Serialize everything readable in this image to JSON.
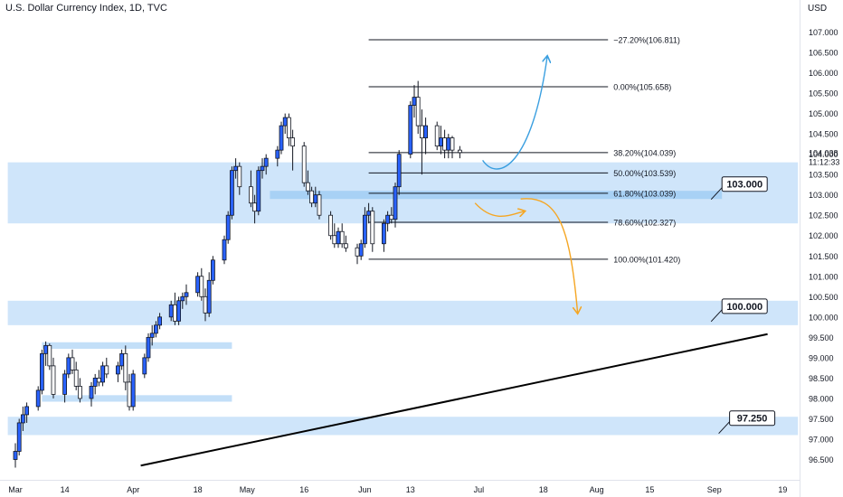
{
  "header": {
    "title": "U.S. Dollar Currency Index, 1D, TVC"
  },
  "chart_data": {
    "type": "candlestick",
    "title": "U.S. Dollar Currency Index, 1D, TVC",
    "yunit": "USD",
    "ylim": [
      96.3,
      107.2
    ],
    "ytick_step": 0.5,
    "current_price": "104.038",
    "countdown": "11:12:33",
    "xticks": [
      {
        "label": "Mar",
        "day": 0
      },
      {
        "label": "14",
        "day": 13
      },
      {
        "label": "Apr",
        "day": 31
      },
      {
        "label": "18",
        "day": 48
      },
      {
        "label": "May",
        "day": 61
      },
      {
        "label": "16",
        "day": 76
      },
      {
        "label": "Jun",
        "day": 92
      },
      {
        "label": "13",
        "day": 104
      },
      {
        "label": "Jul",
        "day": 122
      },
      {
        "label": "18",
        "day": 139
      },
      {
        "label": "Aug",
        "day": 153
      },
      {
        "label": "15",
        "day": 167
      },
      {
        "label": "Sep",
        "day": 184
      },
      {
        "label": "19",
        "day": 202
      }
    ],
    "candles": [
      {
        "day": 0,
        "o": 96.5,
        "h": 96.9,
        "l": 96.3,
        "c": 96.7
      },
      {
        "day": 1,
        "o": 96.7,
        "h": 97.5,
        "l": 96.6,
        "c": 97.4
      },
      {
        "day": 2,
        "o": 97.4,
        "h": 97.8,
        "l": 97.2,
        "c": 97.6
      },
      {
        "day": 3,
        "o": 97.6,
        "h": 97.9,
        "l": 97.4,
        "c": 97.8
      },
      {
        "day": 6,
        "o": 97.8,
        "h": 98.3,
        "l": 97.7,
        "c": 98.2
      },
      {
        "day": 7,
        "o": 98.2,
        "h": 99.2,
        "l": 98.1,
        "c": 99.1
      },
      {
        "day": 8,
        "o": 99.1,
        "h": 99.4,
        "l": 98.8,
        "c": 99.3
      },
      {
        "day": 9,
        "o": 99.3,
        "h": 99.35,
        "l": 98.7,
        "c": 98.8
      },
      {
        "day": 10,
        "o": 98.8,
        "h": 99.0,
        "l": 98.0,
        "c": 98.1
      },
      {
        "day": 13,
        "o": 98.1,
        "h": 98.7,
        "l": 97.9,
        "c": 98.6
      },
      {
        "day": 14,
        "o": 98.6,
        "h": 99.1,
        "l": 98.5,
        "c": 99.0
      },
      {
        "day": 15,
        "o": 99.0,
        "h": 99.2,
        "l": 98.6,
        "c": 98.7
      },
      {
        "day": 16,
        "o": 98.7,
        "h": 98.9,
        "l": 98.2,
        "c": 98.3
      },
      {
        "day": 17,
        "o": 98.3,
        "h": 98.5,
        "l": 97.9,
        "c": 98.0
      },
      {
        "day": 20,
        "o": 98.0,
        "h": 98.4,
        "l": 97.8,
        "c": 98.3
      },
      {
        "day": 21,
        "o": 98.3,
        "h": 98.6,
        "l": 98.1,
        "c": 98.5
      },
      {
        "day": 22,
        "o": 98.5,
        "h": 98.7,
        "l": 98.3,
        "c": 98.4
      },
      {
        "day": 23,
        "o": 98.4,
        "h": 98.9,
        "l": 98.3,
        "c": 98.8
      },
      {
        "day": 24,
        "o": 98.8,
        "h": 99.0,
        "l": 98.5,
        "c": 98.6
      },
      {
        "day": 27,
        "o": 98.6,
        "h": 98.9,
        "l": 98.4,
        "c": 98.8
      },
      {
        "day": 28,
        "o": 98.8,
        "h": 99.2,
        "l": 98.7,
        "c": 99.1
      },
      {
        "day": 29,
        "o": 99.1,
        "h": 99.3,
        "l": 98.2,
        "c": 98.4
      },
      {
        "day": 30,
        "o": 98.4,
        "h": 98.6,
        "l": 97.7,
        "c": 97.8
      },
      {
        "day": 31,
        "o": 97.8,
        "h": 98.7,
        "l": 97.7,
        "c": 98.6
      },
      {
        "day": 34,
        "o": 98.6,
        "h": 99.1,
        "l": 98.5,
        "c": 99.0
      },
      {
        "day": 35,
        "o": 99.0,
        "h": 99.6,
        "l": 98.9,
        "c": 99.5
      },
      {
        "day": 36,
        "o": 99.5,
        "h": 99.8,
        "l": 99.3,
        "c": 99.6
      },
      {
        "day": 37,
        "o": 99.6,
        "h": 99.9,
        "l": 99.5,
        "c": 99.8
      },
      {
        "day": 38,
        "o": 99.8,
        "h": 100.1,
        "l": 99.7,
        "c": 100.0
      },
      {
        "day": 41,
        "o": 100.0,
        "h": 100.4,
        "l": 99.9,
        "c": 100.3
      },
      {
        "day": 42,
        "o": 100.3,
        "h": 100.6,
        "l": 99.8,
        "c": 99.9
      },
      {
        "day": 43,
        "o": 99.9,
        "h": 100.5,
        "l": 99.8,
        "c": 100.4
      },
      {
        "day": 44,
        "o": 100.4,
        "h": 100.6,
        "l": 100.2,
        "c": 100.5
      },
      {
        "day": 45,
        "o": 100.5,
        "h": 100.8,
        "l": 100.3,
        "c": 100.6
      },
      {
        "day": 48,
        "o": 100.6,
        "h": 101.1,
        "l": 100.5,
        "c": 101.0
      },
      {
        "day": 49,
        "o": 101.0,
        "h": 101.2,
        "l": 100.4,
        "c": 100.5
      },
      {
        "day": 50,
        "o": 100.5,
        "h": 100.7,
        "l": 99.9,
        "c": 100.1
      },
      {
        "day": 51,
        "o": 100.1,
        "h": 101.1,
        "l": 100.0,
        "c": 100.9
      },
      {
        "day": 52,
        "o": 100.9,
        "h": 101.5,
        "l": 100.8,
        "c": 101.4
      },
      {
        "day": 55,
        "o": 101.4,
        "h": 102.0,
        "l": 101.3,
        "c": 101.9
      },
      {
        "day": 56,
        "o": 101.9,
        "h": 102.6,
        "l": 101.8,
        "c": 102.5
      },
      {
        "day": 57,
        "o": 102.5,
        "h": 103.7,
        "l": 102.4,
        "c": 103.6
      },
      {
        "day": 58,
        "o": 103.6,
        "h": 103.9,
        "l": 103.4,
        "c": 103.7
      },
      {
        "day": 59,
        "o": 103.7,
        "h": 103.8,
        "l": 103.0,
        "c": 103.2
      },
      {
        "day": 62,
        "o": 103.2,
        "h": 103.6,
        "l": 102.7,
        "c": 102.8
      },
      {
        "day": 63,
        "o": 102.8,
        "h": 103.0,
        "l": 102.3,
        "c": 102.6
      },
      {
        "day": 64,
        "o": 102.6,
        "h": 103.7,
        "l": 102.5,
        "c": 103.6
      },
      {
        "day": 65,
        "o": 103.6,
        "h": 103.9,
        "l": 103.4,
        "c": 103.7
      },
      {
        "day": 66,
        "o": 103.7,
        "h": 104.0,
        "l": 103.5,
        "c": 103.9
      },
      {
        "day": 69,
        "o": 103.9,
        "h": 104.2,
        "l": 103.7,
        "c": 104.1
      },
      {
        "day": 70,
        "o": 104.1,
        "h": 104.8,
        "l": 104.0,
        "c": 104.7
      },
      {
        "day": 71,
        "o": 104.7,
        "h": 105.0,
        "l": 104.5,
        "c": 104.9
      },
      {
        "day": 72,
        "o": 104.9,
        "h": 105.0,
        "l": 104.2,
        "c": 104.4
      },
      {
        "day": 73,
        "o": 104.4,
        "h": 104.6,
        "l": 103.6,
        "c": 104.2
      },
      {
        "day": 76,
        "o": 104.2,
        "h": 104.3,
        "l": 103.2,
        "c": 103.3
      },
      {
        "day": 77,
        "o": 103.3,
        "h": 103.6,
        "l": 103.0,
        "c": 103.1
      },
      {
        "day": 78,
        "o": 103.1,
        "h": 103.2,
        "l": 102.7,
        "c": 102.8
      },
      {
        "day": 79,
        "o": 102.8,
        "h": 103.2,
        "l": 102.7,
        "c": 103.0
      },
      {
        "day": 80,
        "o": 103.0,
        "h": 103.1,
        "l": 102.4,
        "c": 102.5
      },
      {
        "day": 83,
        "o": 102.5,
        "h": 102.6,
        "l": 101.9,
        "c": 102.0
      },
      {
        "day": 84,
        "o": 102.0,
        "h": 102.3,
        "l": 101.7,
        "c": 101.8
      },
      {
        "day": 85,
        "o": 101.8,
        "h": 102.2,
        "l": 101.7,
        "c": 102.1
      },
      {
        "day": 86,
        "o": 102.1,
        "h": 102.3,
        "l": 101.7,
        "c": 101.8
      },
      {
        "day": 87,
        "o": 101.8,
        "h": 102.0,
        "l": 101.6,
        "c": 101.7
      },
      {
        "day": 90,
        "o": 101.7,
        "h": 101.8,
        "l": 101.3,
        "c": 101.5
      },
      {
        "day": 91,
        "o": 101.5,
        "h": 101.9,
        "l": 101.4,
        "c": 101.8
      },
      {
        "day": 92,
        "o": 101.8,
        "h": 102.7,
        "l": 101.7,
        "c": 102.5
      },
      {
        "day": 93,
        "o": 102.5,
        "h": 102.8,
        "l": 102.3,
        "c": 102.6
      },
      {
        "day": 94,
        "o": 102.6,
        "h": 102.7,
        "l": 101.6,
        "c": 101.8
      },
      {
        "day": 97,
        "o": 101.8,
        "h": 102.4,
        "l": 101.6,
        "c": 102.3
      },
      {
        "day": 98,
        "o": 102.3,
        "h": 102.6,
        "l": 102.1,
        "c": 102.5
      },
      {
        "day": 99,
        "o": 102.5,
        "h": 102.7,
        "l": 102.3,
        "c": 102.4
      },
      {
        "day": 100,
        "o": 102.4,
        "h": 103.3,
        "l": 102.2,
        "c": 103.2
      },
      {
        "day": 101,
        "o": 103.2,
        "h": 104.1,
        "l": 103.0,
        "c": 104.0
      },
      {
        "day": 104,
        "o": 104.0,
        "h": 105.3,
        "l": 103.9,
        "c": 105.2
      },
      {
        "day": 105,
        "o": 105.2,
        "h": 105.7,
        "l": 104.9,
        "c": 105.4
      },
      {
        "day": 106,
        "o": 105.4,
        "h": 105.8,
        "l": 104.5,
        "c": 104.7
      },
      {
        "day": 107,
        "o": 104.7,
        "h": 105.1,
        "l": 103.5,
        "c": 104.4
      },
      {
        "day": 108,
        "o": 104.4,
        "h": 104.9,
        "l": 104.0,
        "c": 104.7
      },
      {
        "day": 111,
        "o": 104.7,
        "h": 104.8,
        "l": 104.1,
        "c": 104.2
      },
      {
        "day": 112,
        "o": 104.2,
        "h": 104.7,
        "l": 104.0,
        "c": 104.4
      },
      {
        "day": 113,
        "o": 104.4,
        "h": 104.6,
        "l": 103.9,
        "c": 104.1
      },
      {
        "day": 114,
        "o": 104.1,
        "h": 104.5,
        "l": 103.9,
        "c": 104.4
      },
      {
        "day": 115,
        "o": 104.4,
        "h": 104.45,
        "l": 103.9,
        "c": 104.1
      },
      {
        "day": 117,
        "o": 104.1,
        "h": 104.2,
        "l": 103.9,
        "c": 104.04
      }
    ],
    "fib_levels": [
      {
        "label": "−27.20%(106.811)",
        "value": 106.811
      },
      {
        "label": "0.00%(105.658)",
        "value": 105.658
      },
      {
        "label": "38.20%(104.039)",
        "value": 104.039
      },
      {
        "label": "50.00%(103.539)",
        "value": 103.539
      },
      {
        "label": "61.80%(103.039)",
        "value": 103.039
      },
      {
        "label": "78.60%(102.327)",
        "value": 102.327
      },
      {
        "label": "100.00%(101.420)",
        "value": 101.42
      }
    ],
    "fib_range": {
      "start_day": 93,
      "end_day": 156
    },
    "zones": [
      {
        "y_top": 103.8,
        "y_bot": 102.3,
        "start_day": -2,
        "end_day": 206,
        "color": "#cfe5fa"
      },
      {
        "y_top": 103.1,
        "y_bot": 102.9,
        "start_day": 67,
        "end_day": 186,
        "color": "#a8d1f5"
      },
      {
        "y_top": 100.4,
        "y_bot": 99.8,
        "start_day": -2,
        "end_day": 206,
        "color": "#cfe5fa"
      },
      {
        "y_top": 99.38,
        "y_bot": 99.22,
        "start_day": 7,
        "end_day": 57,
        "color": "#c3dff8"
      },
      {
        "y_top": 98.08,
        "y_bot": 97.92,
        "start_day": 7,
        "end_day": 57,
        "color": "#c3dff8"
      },
      {
        "y_top": 97.55,
        "y_bot": 97.1,
        "start_day": -2,
        "end_day": 206,
        "color": "#cfe5fa"
      }
    ],
    "callouts": [
      {
        "label": "103.000",
        "value": 103.0,
        "box_day": 186
      },
      {
        "label": "100.000",
        "value": 100.0,
        "box_day": 186
      },
      {
        "label": "97.250",
        "value": 97.25,
        "box_day": 188
      }
    ],
    "trendline": {
      "start": {
        "day": 33,
        "value": 96.35
      },
      "end": {
        "day": 198,
        "value": 99.58
      }
    },
    "scenario_arrows": [
      {
        "color": "#3a9fe0",
        "points": [
          [
            123,
            103.85
          ],
          [
            127,
            103.3
          ],
          [
            136,
            103.7
          ],
          [
            140,
            106.4
          ]
        ]
      },
      {
        "color": "#f5a623",
        "points": [
          [
            121,
            102.8
          ],
          [
            126,
            102.3
          ],
          [
            130,
            102.5
          ],
          [
            134,
            102.6
          ]
        ]
      },
      {
        "color": "#f5a623",
        "points": [
          [
            133,
            102.9
          ],
          [
            143,
            103.0
          ],
          [
            146,
            102.2
          ],
          [
            148,
            100.1
          ]
        ]
      }
    ],
    "colors": {
      "up": "#2962ff",
      "down": "#ffffff",
      "outline": "#131722",
      "fib_line": "#131722",
      "trendline": "#000000"
    }
  }
}
